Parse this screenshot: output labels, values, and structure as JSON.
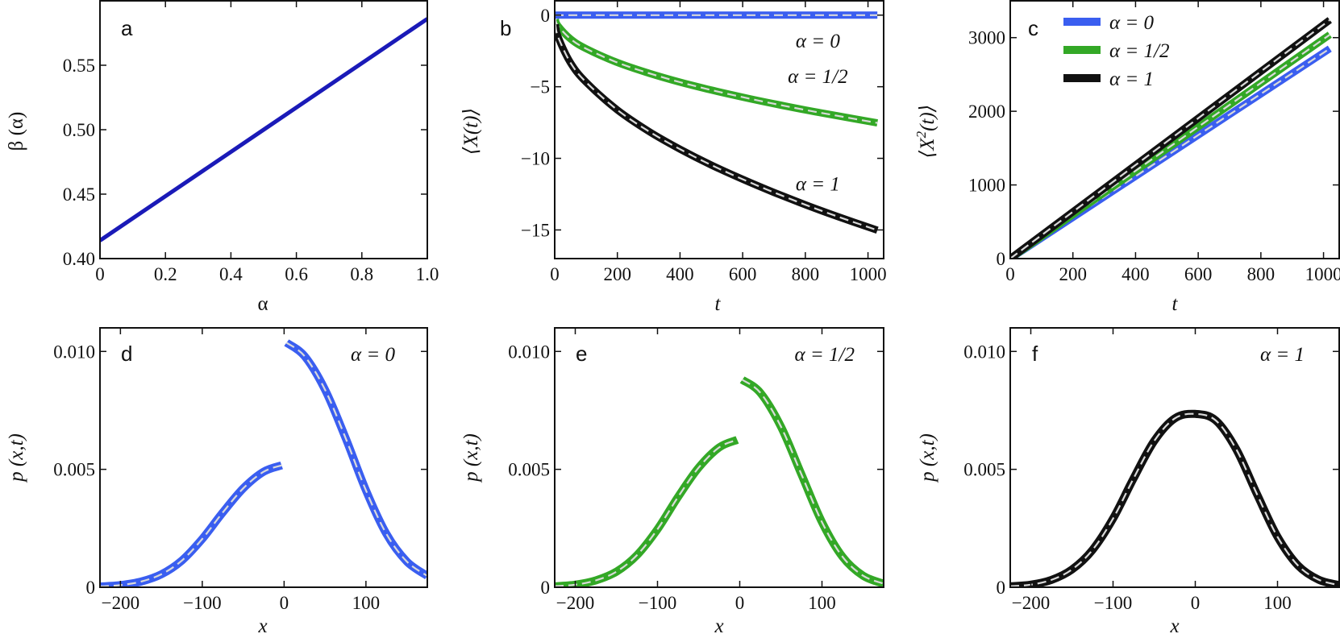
{
  "colors": {
    "alpha0": "#3a5ef0",
    "alpha_half": "#33a826",
    "alpha1": "#111111",
    "beta_line": "#1a1ab8",
    "dash": "#d9d9d9"
  },
  "chart_data": [
    {
      "id": "a",
      "type": "line",
      "panel_letter": "a",
      "xlabel": "α",
      "ylabel": "β (α)",
      "xlim": [
        0,
        1
      ],
      "ylim": [
        0.4,
        0.6
      ],
      "xticks": [
        0,
        0.2,
        0.4,
        0.6,
        0.8,
        1.0
      ],
      "xtick_labels": [
        "0",
        "0.2",
        "0.4",
        "0.6",
        "0.8",
        "1.0"
      ],
      "yticks": [
        0.4,
        0.45,
        0.5,
        0.55
      ],
      "ytick_labels": [
        "0.40",
        "0.45",
        "0.50",
        "0.55"
      ],
      "series": [
        {
          "name": "β(α)",
          "color_key": "beta_line",
          "x": [
            0,
            0.25,
            0.5,
            0.75,
            1.0
          ],
          "y": [
            0.414,
            0.457,
            0.5,
            0.543,
            0.586
          ]
        }
      ]
    },
    {
      "id": "b",
      "type": "line",
      "panel_letter": "b",
      "xlabel": "t",
      "ylabel": "⟨X(t)⟩",
      "xlim": [
        0,
        1050
      ],
      "ylim": [
        -17,
        1
      ],
      "xticks": [
        0,
        200,
        400,
        600,
        800,
        1000
      ],
      "xtick_labels": [
        "0",
        "200",
        "400",
        "600",
        "800",
        "1000"
      ],
      "yticks": [
        0,
        -5,
        -10,
        -15
      ],
      "ytick_labels": [
        "0",
        "−5",
        "−10",
        "−15"
      ],
      "annotations": [
        {
          "text": "α = 0",
          "x": 840,
          "y": -1.8
        },
        {
          "text": "α = 1/2",
          "x": 840,
          "y": -4.3
        },
        {
          "text": "α = 1",
          "x": 840,
          "y": -11.8
        }
      ],
      "series": [
        {
          "name": "α = 0",
          "color_key": "alpha0",
          "x": [
            0,
            1030
          ],
          "y": [
            0,
            0
          ]
        },
        {
          "name": "α = 1/2",
          "color_key": "alpha_half",
          "x": [
            2,
            10,
            50,
            100,
            200,
            300,
            400,
            500,
            600,
            700,
            800,
            900,
            1030
          ],
          "y": [
            -0.33,
            -0.74,
            -1.65,
            -2.34,
            -3.31,
            -4.05,
            -4.68,
            -5.23,
            -5.73,
            -6.19,
            -6.62,
            -7.02,
            -7.53
          ]
        },
        {
          "name": "α = 1",
          "color_key": "alpha1",
          "x": [
            2,
            10,
            50,
            100,
            200,
            300,
            400,
            500,
            600,
            700,
            800,
            900,
            1030
          ],
          "y": [
            -0.66,
            -1.48,
            -3.31,
            -4.68,
            -6.62,
            -8.11,
            -9.36,
            -10.47,
            -11.46,
            -12.38,
            -13.24,
            -14.04,
            -15.02
          ]
        }
      ]
    },
    {
      "id": "c",
      "type": "line",
      "panel_letter": "c",
      "xlabel": "t",
      "ylabel": "⟨X²(t)⟩",
      "ylabel_main": "X",
      "ylabel_sup": "2",
      "ylabel_tail": "(t)",
      "xlim": [
        0,
        1050
      ],
      "ylim": [
        0,
        3500
      ],
      "xticks": [
        0,
        200,
        400,
        600,
        800,
        1000
      ],
      "xtick_labels": [
        "0",
        "200",
        "400",
        "600",
        "800",
        "1000"
      ],
      "yticks": [
        0,
        1000,
        2000,
        3000
      ],
      "ytick_labels": [
        "0",
        "1000",
        "2000",
        "3000"
      ],
      "legend": {
        "placement": "top-left",
        "entries": [
          {
            "label": "α = 0",
            "color_key": "alpha0"
          },
          {
            "label": "α = 1/2",
            "color_key": "alpha_half"
          },
          {
            "label": "α = 1",
            "color_key": "alpha1"
          }
        ]
      },
      "series": [
        {
          "name": "α = 0",
          "color_key": "alpha0",
          "x": [
            0,
            1020
          ],
          "y": [
            0,
            2850
          ]
        },
        {
          "name": "α = 1/2",
          "color_key": "alpha_half",
          "x": [
            0,
            1020
          ],
          "y": [
            0,
            3040
          ]
        },
        {
          "name": "α = 1",
          "color_key": "alpha1",
          "x": [
            0,
            1020
          ],
          "y": [
            0,
            3240
          ]
        }
      ]
    },
    {
      "id": "d",
      "type": "line",
      "panel_letter": "d",
      "xlabel": "x",
      "ylabel": "p (x,t)",
      "xlim": [
        -225,
        175
      ],
      "ylim": [
        0,
        0.011
      ],
      "xticks": [
        -200,
        -100,
        0,
        100
      ],
      "xtick_labels": [
        "−200",
        "−100",
        "0",
        "100"
      ],
      "yticks": [
        0,
        0.005,
        0.01
      ],
      "ytick_labels": [
        "0",
        "0.005",
        "0.010"
      ],
      "annotation": "α = 0",
      "series": [
        {
          "name": "x < 0",
          "color_key": "alpha0",
          "x": [
            -225,
            -200,
            -175,
            -150,
            -125,
            -100,
            -75,
            -50,
            -25,
            -3
          ],
          "y": [
            3e-05,
            9e-05,
            0.00024,
            0.00055,
            0.00113,
            0.00205,
            0.00317,
            0.00419,
            0.0049,
            0.00517
          ]
        },
        {
          "name": "x > 0",
          "color_key": "alpha0",
          "x": [
            3,
            25,
            50,
            75,
            100,
            125,
            150,
            175
          ],
          "y": [
            0.01037,
            0.0098,
            0.00838,
            0.00634,
            0.00411,
            0.00226,
            0.00109,
            0.00048
          ]
        }
      ]
    },
    {
      "id": "e",
      "type": "line",
      "panel_letter": "e",
      "xlabel": "x",
      "ylabel": "p (x,t)",
      "xlim": [
        -225,
        175
      ],
      "ylim": [
        0,
        0.011
      ],
      "xticks": [
        -200,
        -100,
        0,
        100
      ],
      "xtick_labels": [
        "−200",
        "−100",
        "0",
        "100"
      ],
      "yticks": [
        0,
        0.005,
        0.01
      ],
      "ytick_labels": [
        "0",
        "0.005",
        "0.010"
      ],
      "annotation": "α = 1/2",
      "series": [
        {
          "name": "x < 0",
          "color_key": "alpha_half",
          "x": [
            -225,
            -200,
            -175,
            -150,
            -125,
            -100,
            -75,
            -50,
            -25,
            -3
          ],
          "y": [
            4e-05,
            0.00011,
            0.00029,
            0.00066,
            0.00136,
            0.00246,
            0.00383,
            0.00507,
            0.00593,
            0.00625
          ]
        },
        {
          "name": "x > 0",
          "color_key": "alpha_half",
          "x": [
            3,
            25,
            50,
            75,
            100,
            125,
            150,
            175
          ],
          "y": [
            0.0088,
            0.00825,
            0.00682,
            0.00479,
            0.00276,
            0.00129,
            0.00049,
            0.00015
          ]
        }
      ]
    },
    {
      "id": "f",
      "type": "line",
      "panel_letter": "f",
      "xlabel": "x",
      "ylabel": "p (x,t)",
      "xlim": [
        -225,
        175
      ],
      "ylim": [
        0,
        0.011
      ],
      "xticks": [
        -200,
        -100,
        0,
        100
      ],
      "xtick_labels": [
        "−200",
        "−100",
        "0",
        "100"
      ],
      "yticks": [
        0,
        0.005,
        0.01
      ],
      "ytick_labels": [
        "0",
        "0.005",
        "0.010"
      ],
      "annotation": "α = 1",
      "series": [
        {
          "name": "p(x,t)",
          "color_key": "alpha1",
          "x": [
            -225,
            -200,
            -175,
            -150,
            -125,
            -100,
            -75,
            -50,
            -25,
            0,
            25,
            50,
            75,
            100,
            125,
            150,
            175
          ],
          "y": [
            4e-05,
            0.00011,
            0.00031,
            0.00075,
            0.00158,
            0.00291,
            0.00462,
            0.0062,
            0.00716,
            0.00735,
            0.00707,
            0.00584,
            0.00395,
            0.00214,
            0.00092,
            0.00032,
            9e-05
          ]
        }
      ]
    }
  ]
}
